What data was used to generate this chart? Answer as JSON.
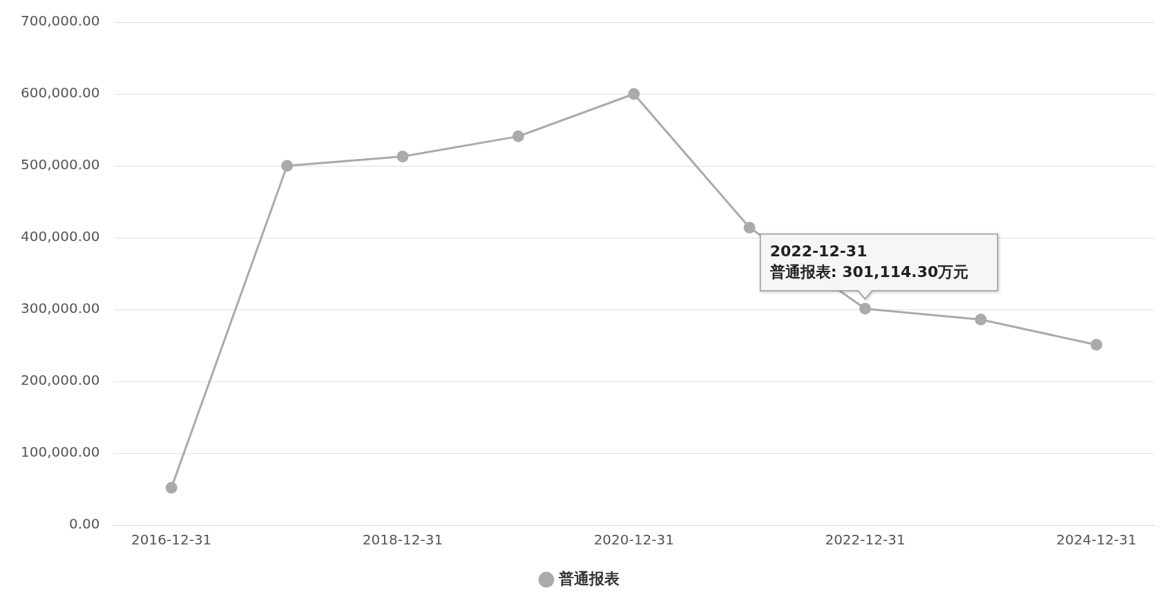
{
  "chart_data": {
    "type": "line",
    "categories": [
      "2016-12-31",
      null,
      "2018-12-31",
      null,
      "2020-12-31",
      null,
      "2022-12-31",
      null,
      "2024-12-31"
    ],
    "series": [
      {
        "name": "普通报表",
        "color": "#aaaaaa",
        "values": [
          52000,
          500000,
          513000,
          541000,
          600000,
          414000,
          301114.3,
          286000,
          251000
        ]
      }
    ],
    "ylim": [
      0,
      700000
    ],
    "yticks": [
      {
        "value": 0,
        "label": "0.00"
      },
      {
        "value": 100000,
        "label": "100,000.00"
      },
      {
        "value": 200000,
        "label": "200,000.00"
      },
      {
        "value": 300000,
        "label": "300,000.00"
      },
      {
        "value": 400000,
        "label": "400,000.00"
      },
      {
        "value": 500000,
        "label": "500,000.00"
      },
      {
        "value": 600000,
        "label": "600,000.00"
      },
      {
        "value": 700000,
        "label": "700,000.00"
      }
    ],
    "grid": "y",
    "legend": "bottom",
    "marker": "circle",
    "line_style": "solid",
    "annotations": [
      {
        "text": "2022-12-31\n普通报表: 301,114.30万元",
        "x": "2022-12-31",
        "y": 301114.3
      }
    ]
  }
}
